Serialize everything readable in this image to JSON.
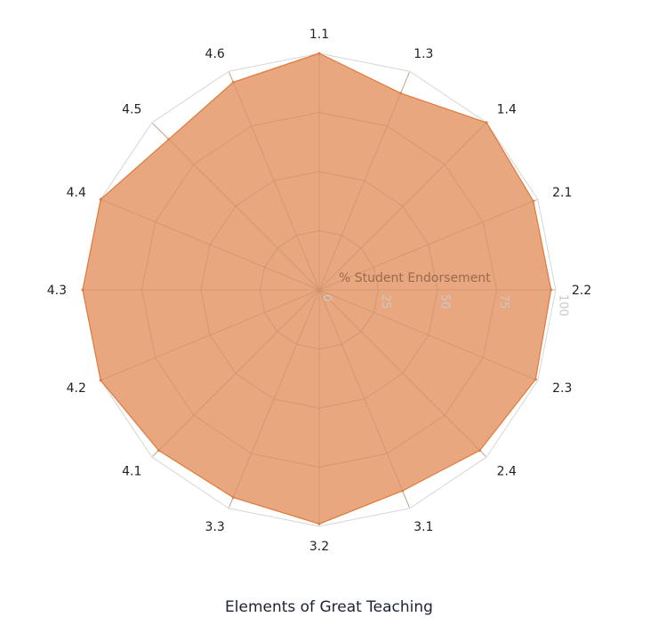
{
  "chart_data": {
    "type": "radar",
    "title": "Elements of Great Teaching",
    "axis_title": "% Student Endorsement",
    "categories": [
      "1.1",
      "1.3",
      "1.4",
      "2.1",
      "2.2",
      "2.3",
      "2.4",
      "3.1",
      "3.2",
      "3.3",
      "4.1",
      "4.2",
      "4.3",
      "4.4",
      "4.5",
      "4.6"
    ],
    "series": [
      {
        "values": [
          100,
          90,
          100,
          98,
          98,
          99,
          96,
          92,
          99,
          95,
          96,
          100,
          100,
          100,
          90,
          95
        ]
      }
    ],
    "rlim": [
      0,
      100
    ],
    "ticks": [
      0,
      25,
      50,
      75,
      100
    ],
    "grid": true,
    "colors": {
      "fill": "#e8a77e",
      "stroke": "#e07a3c",
      "grid_outer": "#d6d6d6",
      "grid_inner": "#c9936f"
    }
  }
}
